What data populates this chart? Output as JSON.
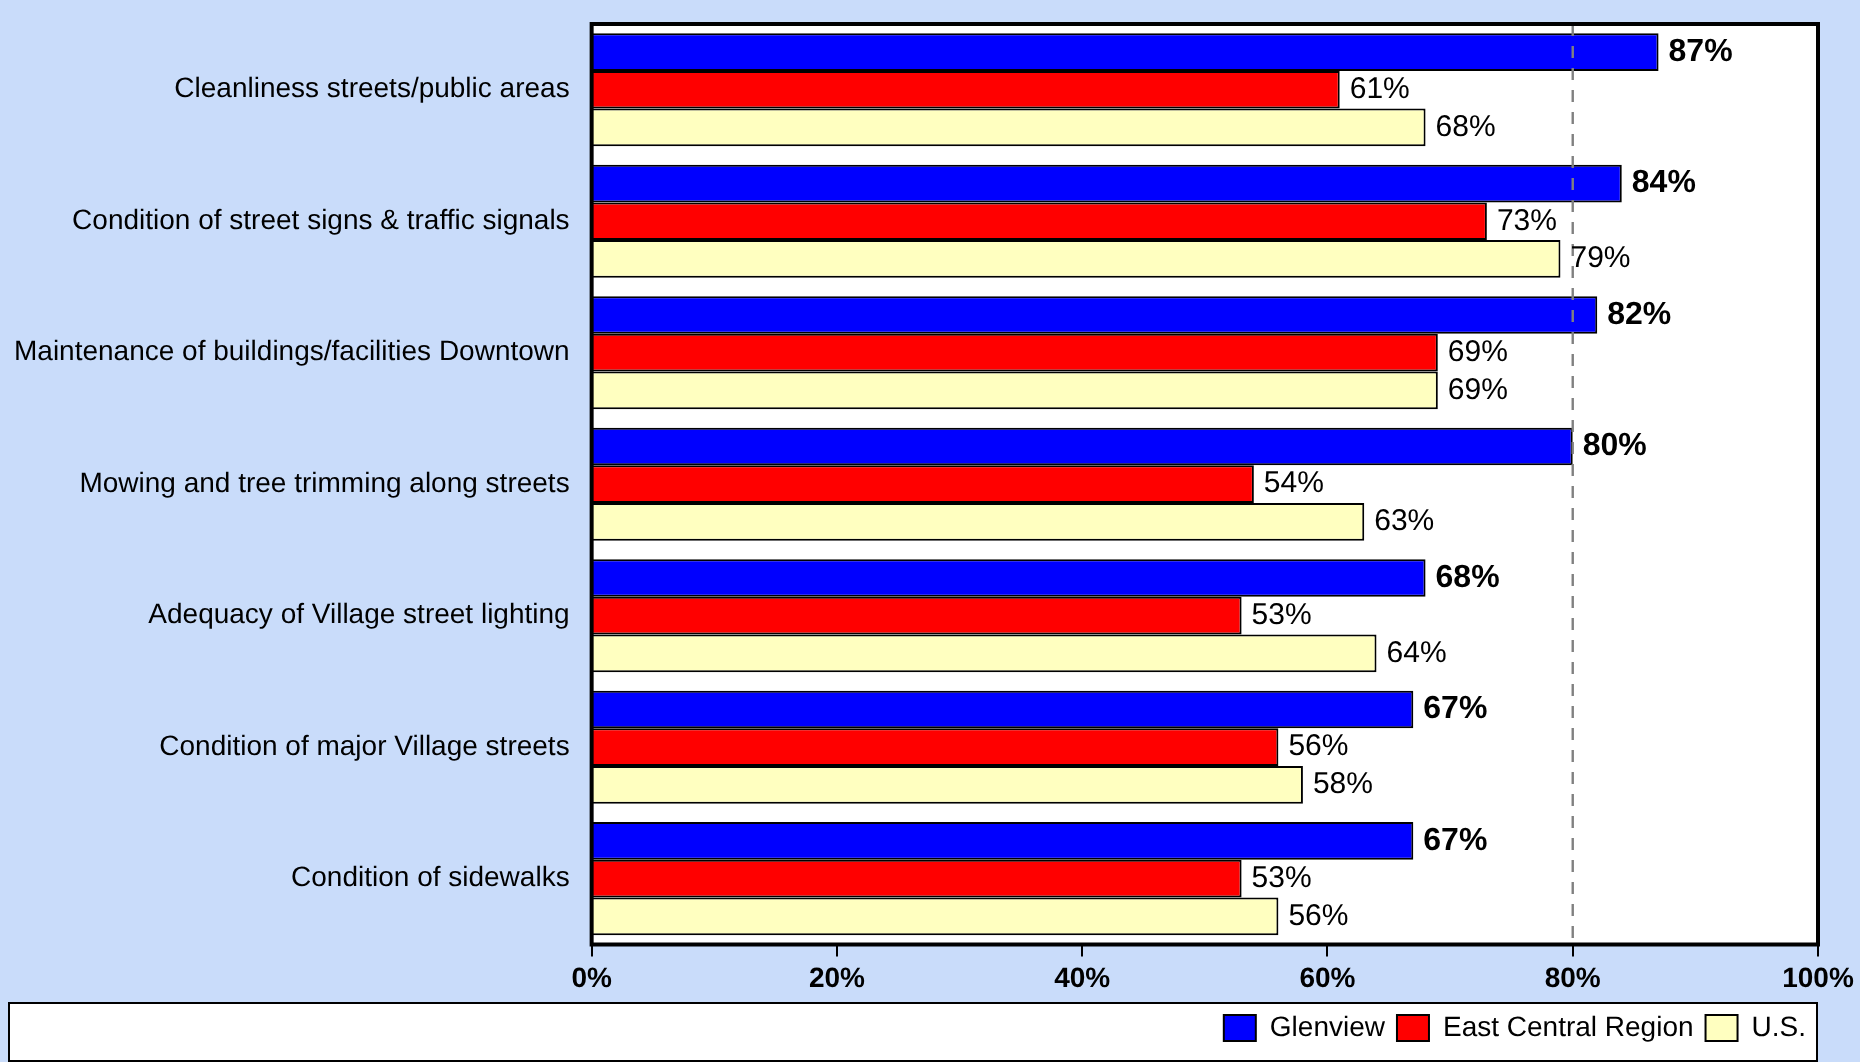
{
  "chart_data": {
    "type": "bar",
    "orientation": "horizontal",
    "categories": [
      "Cleanliness streets/public areas",
      "Condition of street signs & traffic signals",
      "Maintenance of buildings/facilities Downtown",
      "Mowing and tree trimming along streets",
      "Adequacy of Village street lighting",
      "Condition of major Village streets",
      "Condition of sidewalks"
    ],
    "series": [
      {
        "name": "Glenview",
        "color": "#0000ff",
        "values": [
          87,
          84,
          82,
          80,
          68,
          67,
          67
        ],
        "value_labels": [
          "87%",
          "84%",
          "82%",
          "80%",
          "68%",
          "67%",
          "67%"
        ]
      },
      {
        "name": "East Central Region",
        "color": "#ff0000",
        "values": [
          61,
          73,
          69,
          54,
          53,
          56,
          53
        ],
        "value_labels": [
          "61%",
          "73%",
          "69%",
          "54%",
          "53%",
          "56%",
          "53%"
        ]
      },
      {
        "name": "U.S.",
        "color": "#ffffc0",
        "values": [
          68,
          79,
          69,
          63,
          64,
          58,
          56
        ],
        "value_labels": [
          "68%",
          "79%",
          "69%",
          "63%",
          "64%",
          "58%",
          "56%"
        ]
      }
    ],
    "xlim": [
      0,
      100
    ],
    "xticks": [
      {
        "value": 0,
        "label": "0%"
      },
      {
        "value": 20,
        "label": "20%"
      },
      {
        "value": 40,
        "label": "40%"
      },
      {
        "value": 60,
        "label": "60%"
      },
      {
        "value": 80,
        "label": "80%"
      },
      {
        "value": 100,
        "label": "100%"
      }
    ],
    "ref_lines": [
      {
        "axis": "x",
        "value": 80,
        "color": "#808080",
        "line_style": "dashed"
      }
    ],
    "grid": false,
    "legend": "bottom right"
  }
}
